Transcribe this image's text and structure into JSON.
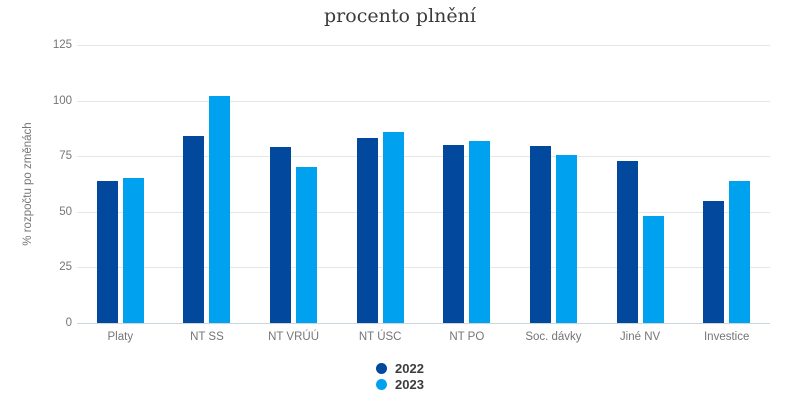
{
  "title": "procento plnění",
  "colors": {
    "series_2022": "#02489d",
    "series_2023": "#00a2ef",
    "grid": "#e6e6e6",
    "baseline": "#ccd6dd",
    "axis_text": "#757575",
    "title_text": "#3b3b3b",
    "legend_text": "#3c3c3c",
    "background": "#ffffff"
  },
  "chart_data": {
    "type": "bar",
    "title": "procento plnění",
    "xlabel": "",
    "ylabel": "% rozpočtu po změnách",
    "ylim": [
      0,
      125
    ],
    "yticks": [
      0,
      25,
      50,
      75,
      100,
      125
    ],
    "grid": true,
    "legend_position": "bottom",
    "categories": [
      "Platy",
      "NT SS",
      "NT VRÚÚ",
      "NT ÚSC",
      "NT PO",
      "Soc. dávky",
      "Jiné NV",
      "Investice"
    ],
    "series": [
      {
        "name": "2022",
        "color": "#02489d",
        "values": [
          64,
          84,
          79,
          83,
          80,
          79.5,
          73,
          55
        ]
      },
      {
        "name": "2023",
        "color": "#00a2ef",
        "values": [
          65,
          102,
          70,
          86,
          82,
          75.5,
          48,
          64
        ]
      }
    ]
  }
}
